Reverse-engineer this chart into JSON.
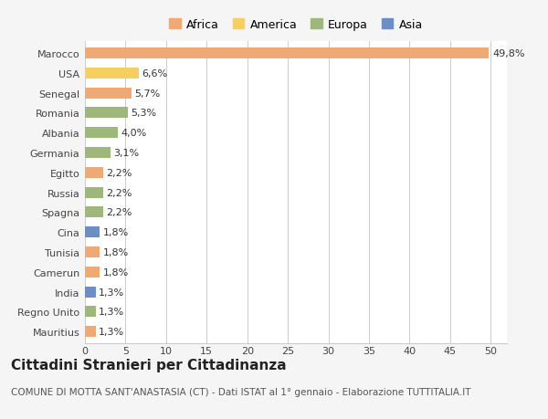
{
  "countries": [
    "Mauritius",
    "Regno Unito",
    "India",
    "Camerun",
    "Tunisia",
    "Cina",
    "Spagna",
    "Russia",
    "Egitto",
    "Germania",
    "Albania",
    "Romania",
    "Senegal",
    "USA",
    "Marocco"
  ],
  "values": [
    1.3,
    1.3,
    1.3,
    1.8,
    1.8,
    1.8,
    2.2,
    2.2,
    2.2,
    3.1,
    4.0,
    5.3,
    5.7,
    6.6,
    49.8
  ],
  "labels": [
    "1,3%",
    "1,3%",
    "1,3%",
    "1,8%",
    "1,8%",
    "1,8%",
    "2,2%",
    "2,2%",
    "2,2%",
    "3,1%",
    "4,0%",
    "5,3%",
    "5,7%",
    "6,6%",
    "49,8%"
  ],
  "colors": [
    "#f0a875",
    "#9db87a",
    "#6b8ec7",
    "#f0a875",
    "#f0a875",
    "#6b8ec7",
    "#9db87a",
    "#9db87a",
    "#f0a875",
    "#9db87a",
    "#9db87a",
    "#9db87a",
    "#f0a875",
    "#f5d060",
    "#f0a875"
  ],
  "continent": [
    "Africa",
    "Europa",
    "Asia",
    "Africa",
    "Africa",
    "Asia",
    "Europa",
    "Europa",
    "Africa",
    "Europa",
    "Europa",
    "Europa",
    "Africa",
    "America",
    "Africa"
  ],
  "legend_labels": [
    "Africa",
    "America",
    "Europa",
    "Asia"
  ],
  "legend_colors": [
    "#f0a875",
    "#f5d060",
    "#9db87a",
    "#6b8ec7"
  ],
  "title": "Cittadini Stranieri per Cittadinanza",
  "subtitle": "COMUNE DI MOTTA SANT'ANASTASIA (CT) - Dati ISTAT al 1° gennaio - Elaborazione TUTTITALIA.IT",
  "xlim": [
    0,
    52
  ],
  "xticks": [
    0,
    5,
    10,
    15,
    20,
    25,
    30,
    35,
    40,
    45,
    50
  ],
  "background_color": "#f5f5f5",
  "bar_background": "#ffffff",
  "grid_color": "#cccccc",
  "title_fontsize": 11,
  "subtitle_fontsize": 7.5,
  "tick_fontsize": 8,
  "label_fontsize": 8
}
